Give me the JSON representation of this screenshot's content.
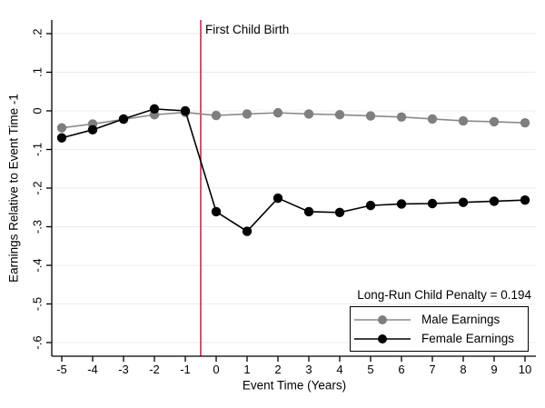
{
  "chart_data": {
    "type": "line",
    "x": [
      -5,
      -4,
      -3,
      -2,
      -1,
      0,
      1,
      2,
      3,
      4,
      5,
      6,
      7,
      8,
      9,
      10
    ],
    "series": [
      {
        "name": "Male Earnings",
        "color": "#8a8a8a",
        "marker_color": "#7f7f7f",
        "values": [
          -0.044,
          -0.034,
          -0.022,
          -0.01,
          -0.004,
          -0.012,
          -0.008,
          -0.005,
          -0.008,
          -0.01,
          -0.013,
          -0.016,
          -0.021,
          -0.026,
          -0.028,
          -0.031
        ]
      },
      {
        "name": "Female Earnings",
        "color": "#000000",
        "marker_color": "#000000",
        "values": [
          -0.07,
          -0.049,
          -0.021,
          0.005,
          0.0,
          -0.261,
          -0.312,
          -0.226,
          -0.261,
          -0.263,
          -0.245,
          -0.241,
          -0.24,
          -0.237,
          -0.234,
          -0.231
        ]
      }
    ],
    "xlabel": "Event Time (Years)",
    "ylabel": "Earnings Relative to Event Time -1",
    "xticks": {
      "values": [
        -5,
        -4,
        -3,
        -2,
        -1,
        0,
        1,
        2,
        3,
        4,
        5,
        6,
        7,
        8,
        9,
        10
      ],
      "labels": [
        "-5",
        "-4",
        "-3",
        "-2",
        "-1",
        "0",
        "1",
        "2",
        "3",
        "4",
        "5",
        "6",
        "7",
        "8",
        "9",
        "10"
      ]
    },
    "yticks": {
      "values": [
        0.2,
        0.1,
        0,
        -0.1,
        -0.2,
        -0.3,
        -0.4,
        -0.5,
        -0.6
      ],
      "labels": [
        ".2",
        ".1",
        "0",
        "-.1",
        "-.2",
        "-.3",
        "-.4",
        "-.5",
        "-.6"
      ]
    },
    "xlim": [
      -5.3,
      10.4
    ],
    "ylim": [
      -0.62,
      0.22
    ],
    "grid": "horizontal",
    "gridline_color": "#e8edf2",
    "axis_color": "#000000",
    "vline": {
      "x": -0.5,
      "color": "#b0123b",
      "label": "First Child Birth"
    },
    "annotation": "Long-Run Child Penalty = 0.194",
    "legend": {
      "position": "bottom-right"
    }
  }
}
